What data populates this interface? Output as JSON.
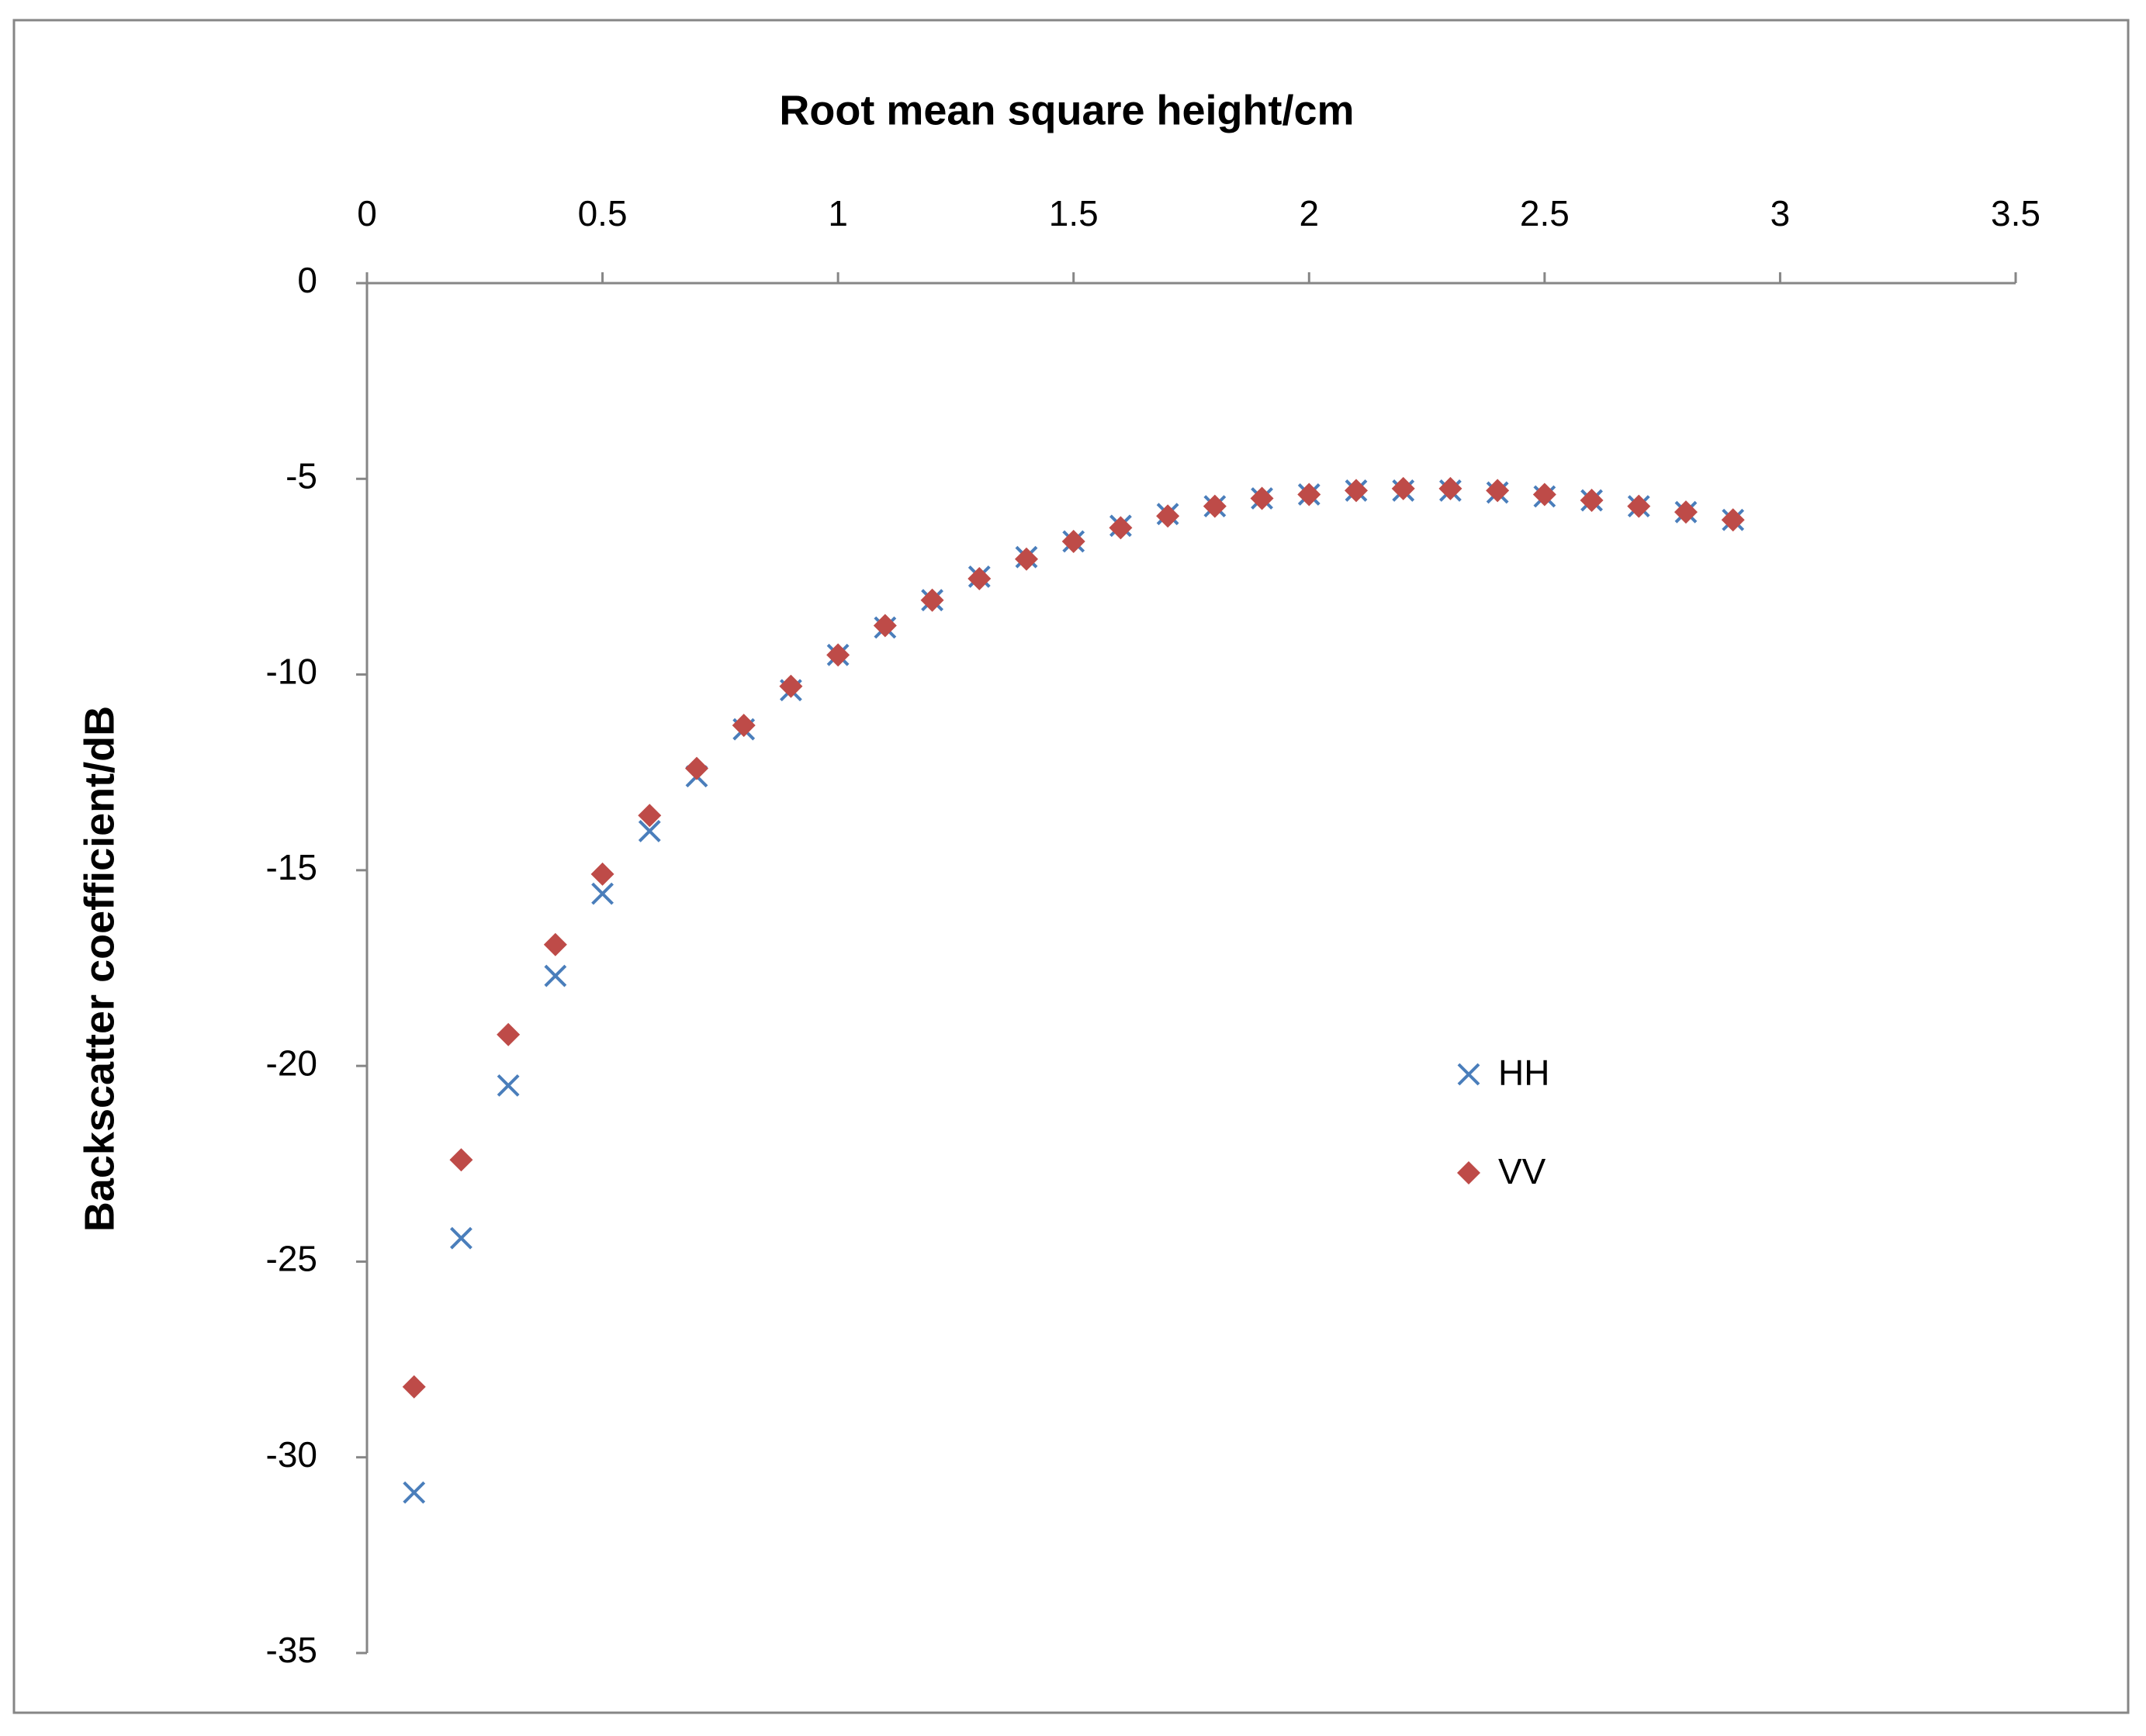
{
  "chart_data": {
    "type": "scatter",
    "x_label": "Root mean square height/cm",
    "y_label": "Backscatter coefficient/dB",
    "x": [
      0.1,
      0.2,
      0.3,
      0.4,
      0.5,
      0.6,
      0.7,
      0.8,
      0.9,
      1.0,
      1.1,
      1.2,
      1.3,
      1.4,
      1.5,
      1.6,
      1.7,
      1.8,
      1.9,
      2.0,
      2.1,
      2.2,
      2.3,
      2.4,
      2.5,
      2.6,
      2.7,
      2.8,
      2.9
    ],
    "series": [
      {
        "name": "HH",
        "color": "#4a7ebb",
        "marker": "x",
        "values": [
          -30.9,
          -24.4,
          -20.5,
          -17.7,
          -15.6,
          -14.0,
          -12.6,
          -11.4,
          -10.4,
          -9.5,
          -8.8,
          -8.1,
          -7.5,
          -7.0,
          -6.6,
          -6.2,
          -5.9,
          -5.7,
          -5.5,
          -5.4,
          -5.3,
          -5.3,
          -5.3,
          -5.35,
          -5.45,
          -5.55,
          -5.7,
          -5.85,
          -6.05
        ]
      },
      {
        "name": "VV",
        "color": "#be4b48",
        "marker": "diamond",
        "values": [
          -28.2,
          -22.4,
          -19.2,
          -16.9,
          -15.1,
          -13.6,
          -12.4,
          -11.3,
          -10.3,
          -9.5,
          -8.75,
          -8.1,
          -7.55,
          -7.05,
          -6.6,
          -6.25,
          -5.95,
          -5.7,
          -5.5,
          -5.4,
          -5.3,
          -5.25,
          -5.25,
          -5.3,
          -5.4,
          -5.55,
          -5.7,
          -5.85,
          -6.05
        ]
      }
    ],
    "xlim": [
      0,
      3.5
    ],
    "xticks": [
      0,
      0.5,
      1,
      1.5,
      2,
      2.5,
      3,
      3.5
    ],
    "ylim": [
      -35,
      0
    ],
    "yticks": [
      0,
      -5,
      -10,
      -15,
      -20,
      -25,
      -30,
      -35
    ],
    "x_axis_position": "top",
    "grid": false,
    "legend": "right"
  }
}
